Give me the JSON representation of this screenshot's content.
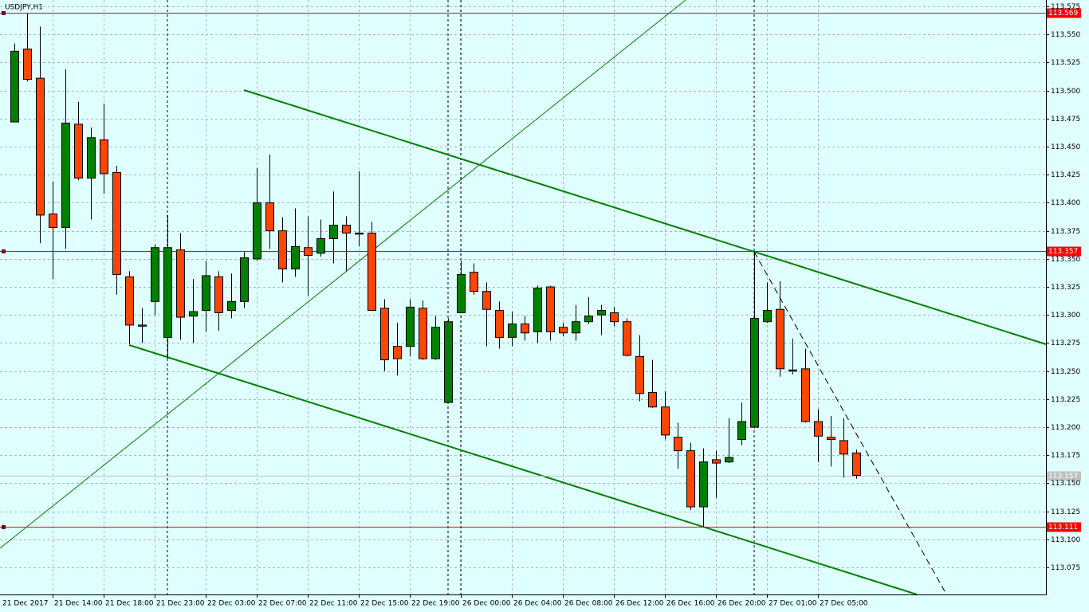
{
  "chart_data": {
    "type": "candlestick",
    "title": "USDJPY,H1",
    "x_first_label": "21 Dec 2017",
    "categories": [
      null,
      null,
      null,
      "21 Dec 14:00",
      null,
      null,
      null,
      "21 Dec 18:00",
      null,
      null,
      null,
      "21 Dec 23:00",
      null,
      null,
      null,
      "22 Dec 03:00",
      null,
      null,
      null,
      "22 Dec 07:00",
      null,
      null,
      null,
      "22 Dec 11:00",
      null,
      null,
      null,
      "22 Dec 15:00",
      null,
      null,
      null,
      "22 Dec 19:00",
      null,
      null,
      null,
      "26 Dec 00:00",
      null,
      null,
      null,
      "26 Dec 04:00",
      null,
      null,
      null,
      "26 Dec 08:00",
      null,
      null,
      null,
      "26 Dec 12:00",
      null,
      null,
      null,
      "26 Dec 16:00",
      null,
      null,
      null,
      "26 Dec 20:00",
      null,
      null,
      null,
      "27 Dec 01:00",
      null,
      null,
      null,
      "27 Dec 05:00",
      null,
      null,
      null
    ],
    "open": [
      113.472,
      113.537,
      113.511,
      113.39,
      113.378,
      113.47,
      113.422,
      113.456,
      113.427,
      113.334,
      113.291,
      113.312,
      113.28,
      113.358,
      113.299,
      113.304,
      113.334,
      113.304,
      113.312,
      113.35,
      113.4,
      113.375,
      113.341,
      113.36,
      113.355,
      113.368,
      113.38,
      113.373,
      113.373,
      113.306,
      113.272,
      113.272,
      113.306,
      113.261,
      113.222,
      113.302,
      113.338,
      113.321,
      113.304,
      113.28,
      113.292,
      113.285,
      113.325,
      113.289,
      113.284,
      113.294,
      113.3,
      113.302,
      113.294,
      113.263,
      113.231,
      113.218,
      113.191,
      113.179,
      113.129,
      113.171,
      113.169,
      113.189,
      113.2,
      113.294,
      113.305,
      113.251,
      113.252,
      113.205,
      113.191,
      113.188,
      113.177
    ],
    "high": [
      113.542,
      113.569,
      113.557,
      113.419,
      113.519,
      113.49,
      113.467,
      113.488,
      113.433,
      113.339,
      113.306,
      113.363,
      113.389,
      113.373,
      113.332,
      113.348,
      113.339,
      113.337,
      113.356,
      113.431,
      113.443,
      113.387,
      113.395,
      113.388,
      113.385,
      113.41,
      113.388,
      113.428,
      113.383,
      113.314,
      113.293,
      113.314,
      113.313,
      113.299,
      113.297,
      113.348,
      113.346,
      113.329,
      113.312,
      113.303,
      113.299,
      113.326,
      113.326,
      113.293,
      113.309,
      113.316,
      113.309,
      113.307,
      113.297,
      113.282,
      113.26,
      113.232,
      113.204,
      113.186,
      113.181,
      113.179,
      113.208,
      113.222,
      113.357,
      113.329,
      113.33,
      113.279,
      113.27,
      113.216,
      113.21,
      113.208,
      113.18
    ],
    "low": [
      113.472,
      113.508,
      113.364,
      113.332,
      113.359,
      113.42,
      113.385,
      113.408,
      113.318,
      113.274,
      113.275,
      113.3,
      113.261,
      113.278,
      113.275,
      113.285,
      113.286,
      113.297,
      113.306,
      113.348,
      113.359,
      113.329,
      113.334,
      113.317,
      113.352,
      113.346,
      113.339,
      113.361,
      113.304,
      113.25,
      113.246,
      113.263,
      113.26,
      113.26,
      113.222,
      113.302,
      113.318,
      113.272,
      113.27,
      113.272,
      113.277,
      113.275,
      113.277,
      113.281,
      113.277,
      113.292,
      113.282,
      113.29,
      113.263,
      113.223,
      113.217,
      113.189,
      113.163,
      113.126,
      113.111,
      113.137,
      113.168,
      113.184,
      113.199,
      113.293,
      113.245,
      113.247,
      113.204,
      113.169,
      113.165,
      113.155,
      113.154
    ],
    "close": [
      113.535,
      113.51,
      113.389,
      113.378,
      113.471,
      113.422,
      113.458,
      113.426,
      113.336,
      113.291,
      113.29,
      113.36,
      113.36,
      113.298,
      113.303,
      113.335,
      113.302,
      113.312,
      113.351,
      113.4,
      113.375,
      113.341,
      113.361,
      113.353,
      113.368,
      113.38,
      113.373,
      113.372,
      113.304,
      113.26,
      113.261,
      113.307,
      113.261,
      113.289,
      113.294,
      113.336,
      113.321,
      113.305,
      113.28,
      113.292,
      113.284,
      113.324,
      113.285,
      113.284,
      113.294,
      113.299,
      113.304,
      113.294,
      113.264,
      113.23,
      113.218,
      113.193,
      113.179,
      113.129,
      113.169,
      113.168,
      113.173,
      113.205,
      113.297,
      113.304,
      113.252,
      113.25,
      113.205,
      113.192,
      113.189,
      113.176,
      113.157
    ],
    "up_color": "#008000",
    "down_color": "#ff4500",
    "ylim": [
      113.0509,
      113.5807
    ],
    "yticks": [
      113.075,
      {
        "value": 113.1,
        "label": "113.100"
      },
      113.125,
      {
        "value": 113.15,
        "label": "113.150"
      },
      113.175,
      {
        "value": 113.2,
        "label": "113.200"
      },
      113.225,
      {
        "value": 113.25,
        "label": "113.250"
      },
      113.275,
      {
        "value": 113.3,
        "label": "113.300"
      },
      113.325,
      {
        "value": 113.35,
        "label": "113.350"
      },
      113.375,
      {
        "value": 113.4,
        "label": "113.400"
      },
      113.425,
      {
        "value": 113.45,
        "label": "113.450"
      },
      113.475,
      {
        "value": 113.5,
        "label": "113.500"
      },
      113.525,
      {
        "value": 113.55,
        "label": "113.550"
      },
      113.575
    ],
    "grid": true,
    "hlines": [
      {
        "value": 113.569,
        "color": "#ff0000"
      },
      {
        "value": 113.357,
        "color": "#ff0000"
      },
      {
        "value": 113.111,
        "color": "#ff0000"
      }
    ],
    "last_price": {
      "value": 113.157,
      "color": "#c0c0c0"
    }
  }
}
